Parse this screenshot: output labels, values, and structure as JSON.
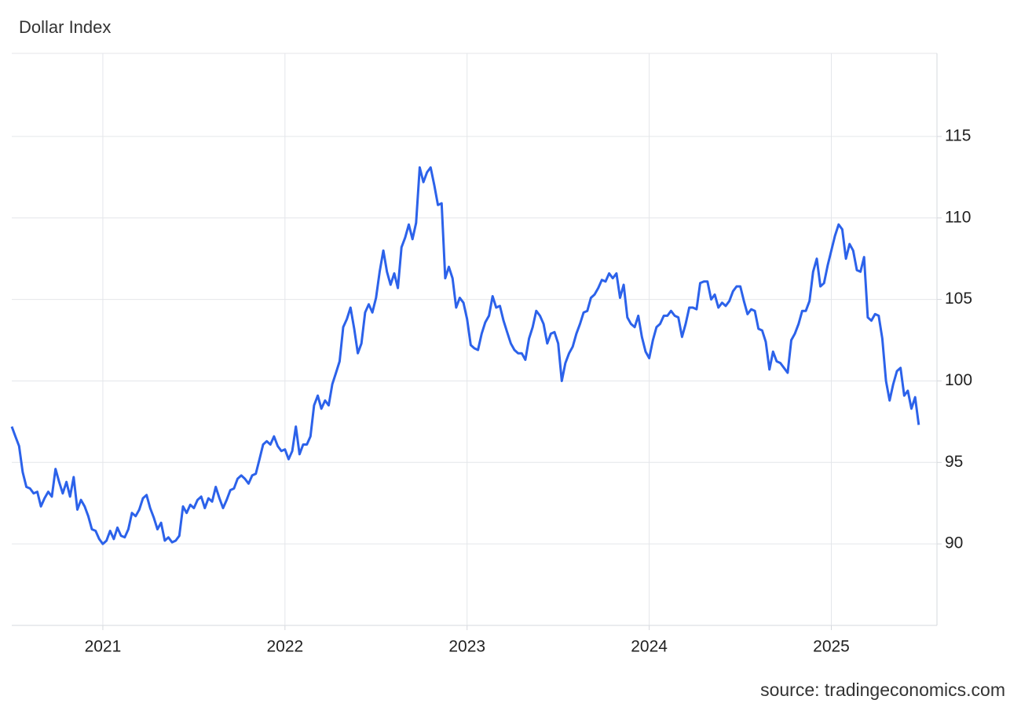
{
  "chart_data": {
    "type": "line",
    "title": "Dollar Index",
    "source": "source: tradingeconomics.com",
    "color": "#2c62ea",
    "grid": true,
    "xlim": [
      2020.5,
      2025.58
    ],
    "xticks": [
      2021,
      2022,
      2023,
      2024,
      2025
    ],
    "ylim": [
      85,
      120.1
    ],
    "yticks": [
      90,
      95,
      100,
      105,
      110,
      115
    ],
    "x": [
      2020.5,
      2020.52,
      2020.54,
      2020.56,
      2020.58,
      2020.6,
      2020.62,
      2020.64,
      2020.66,
      2020.68,
      2020.7,
      2020.72,
      2020.74,
      2020.76,
      2020.78,
      2020.8,
      2020.82,
      2020.84,
      2020.86,
      2020.88,
      2020.9,
      2020.92,
      2020.94,
      2020.96,
      2020.98,
      2021,
      2021.02,
      2021.04,
      2021.06,
      2021.08,
      2021.1,
      2021.12,
      2021.14,
      2021.16,
      2021.18,
      2021.2,
      2021.22,
      2021.24,
      2021.26,
      2021.28,
      2021.3,
      2021.32,
      2021.34,
      2021.36,
      2021.38,
      2021.4,
      2021.42,
      2021.44,
      2021.46,
      2021.48,
      2021.5,
      2021.52,
      2021.54,
      2021.56,
      2021.58,
      2021.6,
      2021.62,
      2021.64,
      2021.66,
      2021.68,
      2021.7,
      2021.72,
      2021.74,
      2021.76,
      2021.78,
      2021.8,
      2021.82,
      2021.84,
      2021.86,
      2021.88,
      2021.9,
      2021.92,
      2021.94,
      2021.96,
      2021.98,
      2022,
      2022.02,
      2022.04,
      2022.06,
      2022.08,
      2022.1,
      2022.12,
      2022.14,
      2022.16,
      2022.18,
      2022.2,
      2022.22,
      2022.24,
      2022.26,
      2022.28,
      2022.3,
      2022.32,
      2022.34,
      2022.36,
      2022.38,
      2022.4,
      2022.42,
      2022.44,
      2022.46,
      2022.48,
      2022.5,
      2022.52,
      2022.54,
      2022.56,
      2022.58,
      2022.6,
      2022.62,
      2022.64,
      2022.66,
      2022.68,
      2022.7,
      2022.72,
      2022.74,
      2022.76,
      2022.78,
      2022.8,
      2022.82,
      2022.84,
      2022.86,
      2022.88,
      2022.9,
      2022.92,
      2022.94,
      2022.96,
      2022.98,
      2023,
      2023.02,
      2023.04,
      2023.06,
      2023.08,
      2023.1,
      2023.12,
      2023.14,
      2023.16,
      2023.18,
      2023.2,
      2023.22,
      2023.24,
      2023.26,
      2023.28,
      2023.3,
      2023.32,
      2023.34,
      2023.36,
      2023.38,
      2023.4,
      2023.42,
      2023.44,
      2023.46,
      2023.48,
      2023.5,
      2023.52,
      2023.54,
      2023.56,
      2023.58,
      2023.6,
      2023.62,
      2023.64,
      2023.66,
      2023.68,
      2023.7,
      2023.72,
      2023.74,
      2023.76,
      2023.78,
      2023.8,
      2023.82,
      2023.84,
      2023.86,
      2023.88,
      2023.9,
      2023.92,
      2023.94,
      2023.96,
      2023.98,
      2024,
      2024.02,
      2024.04,
      2024.06,
      2024.08,
      2024.1,
      2024.12,
      2024.14,
      2024.16,
      2024.18,
      2024.2,
      2024.22,
      2024.24,
      2024.26,
      2024.28,
      2024.3,
      2024.32,
      2024.34,
      2024.36,
      2024.38,
      2024.4,
      2024.42,
      2024.44,
      2024.46,
      2024.48,
      2024.5,
      2024.52,
      2024.54,
      2024.56,
      2024.58,
      2024.6,
      2024.62,
      2024.64,
      2024.66,
      2024.68,
      2024.7,
      2024.72,
      2024.74,
      2024.76,
      2024.78,
      2024.8,
      2024.82,
      2024.84,
      2024.86,
      2024.88,
      2024.9,
      2024.92,
      2024.94,
      2024.96,
      2024.98,
      2025,
      2025.02,
      2025.04,
      2025.06,
      2025.08,
      2025.1,
      2025.12,
      2025.14,
      2025.16,
      2025.18,
      2025.2,
      2025.22,
      2025.24,
      2025.26,
      2025.28,
      2025.3,
      2025.32,
      2025.34,
      2025.36,
      2025.38,
      2025.4,
      2025.42,
      2025.44,
      2025.46,
      2025.48
    ],
    "values": [
      97.2,
      96.6,
      96.0,
      94.4,
      93.5,
      93.4,
      93.1,
      93.2,
      92.3,
      92.8,
      93.2,
      92.9,
      94.6,
      93.8,
      93.1,
      93.8,
      92.9,
      94.1,
      92.1,
      92.7,
      92.3,
      91.7,
      90.9,
      90.8,
      90.3,
      90.0,
      90.2,
      90.8,
      90.3,
      91.0,
      90.5,
      90.4,
      90.9,
      91.9,
      91.7,
      92.1,
      92.8,
      93.0,
      92.2,
      91.6,
      90.9,
      91.3,
      90.2,
      90.4,
      90.1,
      90.2,
      90.5,
      92.3,
      91.9,
      92.4,
      92.2,
      92.7,
      92.9,
      92.2,
      92.8,
      92.6,
      93.5,
      92.8,
      92.2,
      92.7,
      93.3,
      93.4,
      94.0,
      94.2,
      94.0,
      93.7,
      94.2,
      94.3,
      95.2,
      96.1,
      96.3,
      96.1,
      96.6,
      96.0,
      95.7,
      95.8,
      95.2,
      95.7,
      97.2,
      95.5,
      96.1,
      96.1,
      96.6,
      98.5,
      99.1,
      98.3,
      98.8,
      98.5,
      99.8,
      100.5,
      101.2,
      103.3,
      103.8,
      104.5,
      103.2,
      101.7,
      102.3,
      104.2,
      104.7,
      104.2,
      105.1,
      106.7,
      108.0,
      106.7,
      105.9,
      106.6,
      105.7,
      108.2,
      108.8,
      109.6,
      108.7,
      109.7,
      113.1,
      112.2,
      112.8,
      113.1,
      112.0,
      110.8,
      110.9,
      106.3,
      107.0,
      106.3,
      104.5,
      105.1,
      104.8,
      103.8,
      102.2,
      102.0,
      101.9,
      102.9,
      103.6,
      104.0,
      105.2,
      104.5,
      104.6,
      103.7,
      103.0,
      102.3,
      101.9,
      101.7,
      101.7,
      101.3,
      102.6,
      103.3,
      104.3,
      104.0,
      103.5,
      102.3,
      102.9,
      103.0,
      102.3,
      100.0,
      101.1,
      101.7,
      102.1,
      102.9,
      103.5,
      104.2,
      104.3,
      105.1,
      105.3,
      105.7,
      106.2,
      106.1,
      106.6,
      106.3,
      106.6,
      105.1,
      105.9,
      103.9,
      103.5,
      103.3,
      104.0,
      102.7,
      101.8,
      101.4,
      102.5,
      103.3,
      103.5,
      104.0,
      104.0,
      104.3,
      104.0,
      103.9,
      102.7,
      103.5,
      104.5,
      104.5,
      104.4,
      106.0,
      106.1,
      106.1,
      105.0,
      105.3,
      104.5,
      104.8,
      104.6,
      104.9,
      105.5,
      105.8,
      105.8,
      104.9,
      104.1,
      104.4,
      104.3,
      103.2,
      103.1,
      102.4,
      100.7,
      101.8,
      101.2,
      101.1,
      100.8,
      100.5,
      102.5,
      102.9,
      103.5,
      104.3,
      104.3,
      104.9,
      106.7,
      107.5,
      105.8,
      106.0,
      107.1,
      108.0,
      108.9,
      109.6,
      109.3,
      107.5,
      108.4,
      108.0,
      106.8,
      106.7,
      107.6,
      103.9,
      103.7,
      104.1,
      104.0,
      102.6,
      100.0,
      98.8,
      99.8,
      100.6,
      100.8,
      99.1,
      99.4,
      98.3,
      99.0,
      97.3
    ]
  }
}
